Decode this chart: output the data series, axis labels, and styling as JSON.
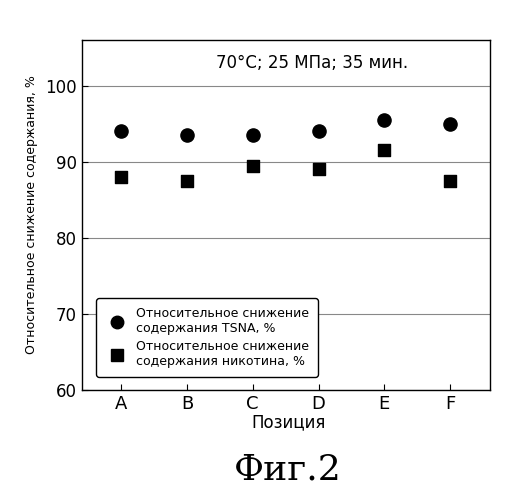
{
  "categories": [
    "A",
    "B",
    "C",
    "D",
    "E",
    "F"
  ],
  "tsna_values": [
    94.0,
    93.5,
    93.5,
    94.0,
    95.5,
    95.0
  ],
  "nicotine_values": [
    88.0,
    87.5,
    89.5,
    89.0,
    91.5,
    87.5
  ],
  "annotation": "70°C; 25 МПа; 35 мин.",
  "ylabel": "Относительное снижение содержания, %",
  "xlabel": "Позиция",
  "fig_label": "Фиг.2",
  "ylim": [
    60,
    106
  ],
  "yticks": [
    60,
    70,
    80,
    90,
    100
  ],
  "legend_tsna": "Относительное снижение\nсодержания TSNA, %",
  "legend_nicotine": "Относительное снижение\nсодержания никотина, %",
  "marker_color": "black",
  "background_color": "white",
  "grid_color": "#888888"
}
